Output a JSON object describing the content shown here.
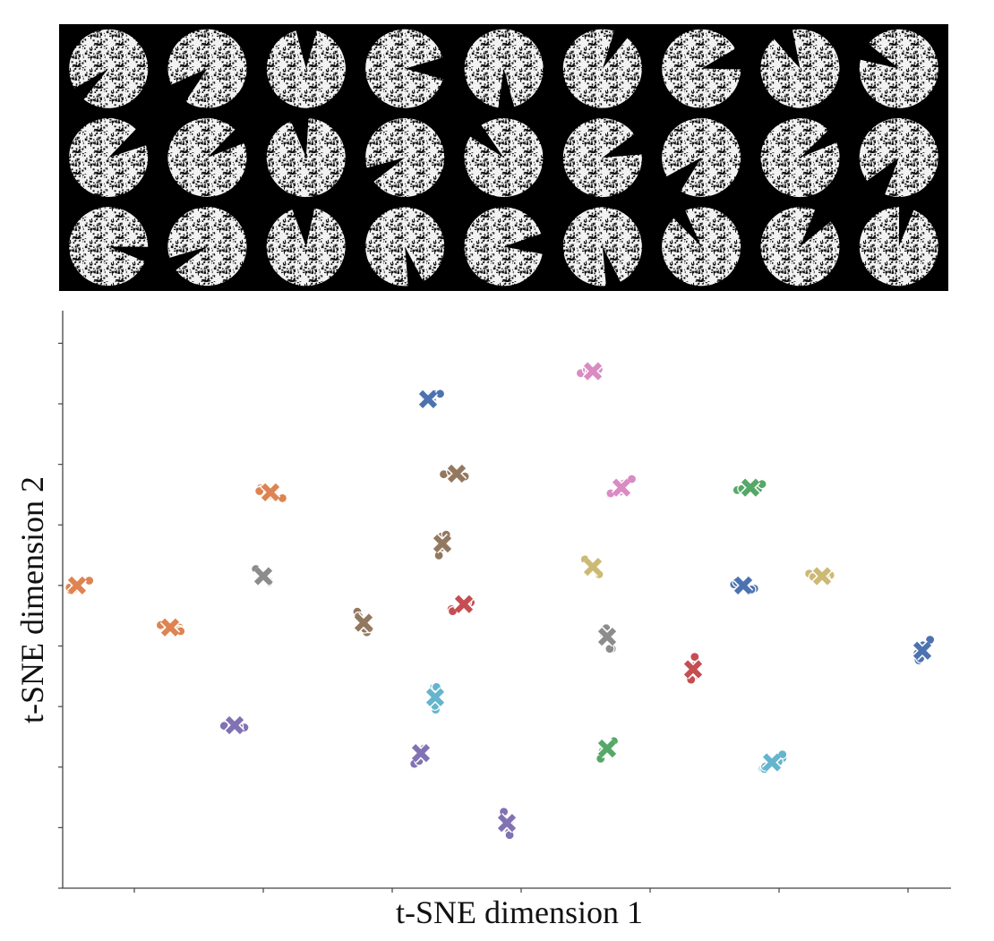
{
  "figure": {
    "image_grid": {
      "rows": 3,
      "cols": 9,
      "description": ""
    },
    "colors": {
      "blue": "#4c72b0",
      "orange": "#dd8452",
      "green": "#55a868",
      "red": "#c44e52",
      "purple": "#8172b3",
      "brown": "#937860",
      "pink": "#da8bc3",
      "gray": "#8c8c8c",
      "olive": "#ccb974",
      "cyan": "#64b5cd"
    }
  },
  "chart_data": {
    "type": "scatter",
    "title": "",
    "xlabel": "t-SNE dimension 1",
    "ylabel": "t-SNE dimension 2",
    "xlim": [
      -62,
      62
    ],
    "ylim": [
      -62,
      62
    ],
    "x_ticks": [
      -52,
      -34,
      -16,
      2,
      20,
      38,
      56
    ],
    "y_ticks": [
      -62,
      -49,
      -36,
      -23,
      -10,
      3,
      16,
      29,
      42,
      55
    ],
    "grid": false,
    "legend": "none",
    "markers": "cluster centroids shown as X, member points as circles",
    "clusters": [
      {
        "color": "pink",
        "x": 12,
        "y": 49
      },
      {
        "color": "blue",
        "x": -11,
        "y": 43
      },
      {
        "color": "brown",
        "x": -7,
        "y": 27
      },
      {
        "color": "pink",
        "x": 16,
        "y": 24
      },
      {
        "color": "green",
        "x": 34,
        "y": 24
      },
      {
        "color": "orange",
        "x": -33,
        "y": 23
      },
      {
        "color": "brown",
        "x": -9,
        "y": 12
      },
      {
        "color": "olive",
        "x": 12,
        "y": 7
      },
      {
        "color": "olive",
        "x": 44,
        "y": 5
      },
      {
        "color": "gray",
        "x": -34,
        "y": 5
      },
      {
        "color": "blue",
        "x": 33,
        "y": 3
      },
      {
        "color": "orange",
        "x": -60,
        "y": 3
      },
      {
        "color": "red",
        "x": -6,
        "y": -1
      },
      {
        "color": "orange",
        "x": -47,
        "y": -6
      },
      {
        "color": "brown",
        "x": -20,
        "y": -5
      },
      {
        "color": "gray",
        "x": 14,
        "y": -8
      },
      {
        "color": "blue",
        "x": 58,
        "y": -11
      },
      {
        "color": "red",
        "x": 26,
        "y": -15
      },
      {
        "color": "cyan",
        "x": -10,
        "y": -21
      },
      {
        "color": "purple",
        "x": -38,
        "y": -27
      },
      {
        "color": "purple",
        "x": -12,
        "y": -33
      },
      {
        "color": "green",
        "x": 14,
        "y": -32
      },
      {
        "color": "cyan",
        "x": 37,
        "y": -35
      },
      {
        "color": "purple",
        "x": 0,
        "y": -48
      }
    ]
  }
}
